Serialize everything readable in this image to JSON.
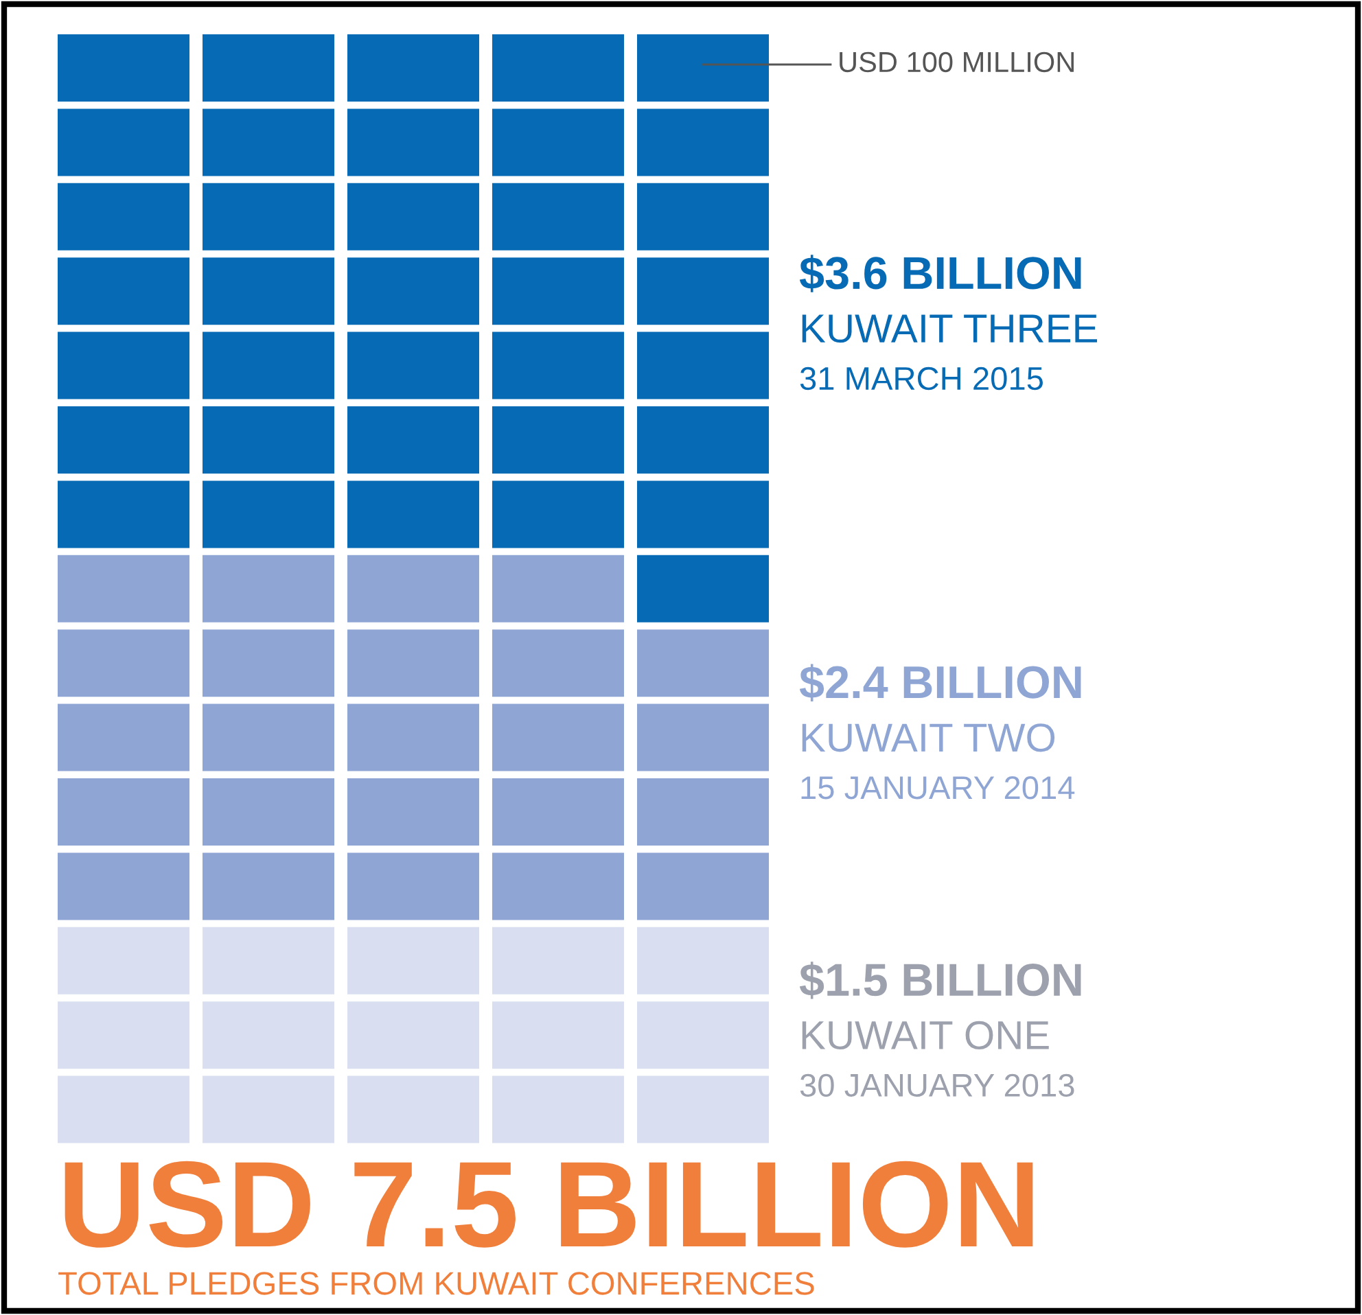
{
  "chart_data": {
    "type": "other",
    "title": "USD 7.5 BILLION",
    "subtitle": "TOTAL PLEDGES FROM KUWAIT CONFERENCES",
    "annotations": [
      "USD 100 MILLION"
    ],
    "categories": [
      "30 JANUARY 2013",
      "15 JANUARY 2014",
      "31 MARCH 2015"
    ],
    "series": [
      {
        "name": "KUWAIT ONE",
        "color": "#d9dff0",
        "values": [
          1.5,
          null,
          null
        ],
        "value_labels": [
          "$1.5 BILLION",
          null,
          null
        ]
      },
      {
        "name": "KUWAIT TWO",
        "color": "#8fa6d5",
        "values": [
          null,
          2.4,
          null
        ],
        "value_labels": [
          null,
          "$2.4 BILLION",
          null
        ]
      },
      {
        "name": "KUWAIT THREE",
        "color": "#066bb4",
        "values": [
          null,
          null,
          3.6
        ],
        "value_labels": [
          null,
          null,
          "$3.6 BILLION"
        ]
      }
    ]
  }
}
